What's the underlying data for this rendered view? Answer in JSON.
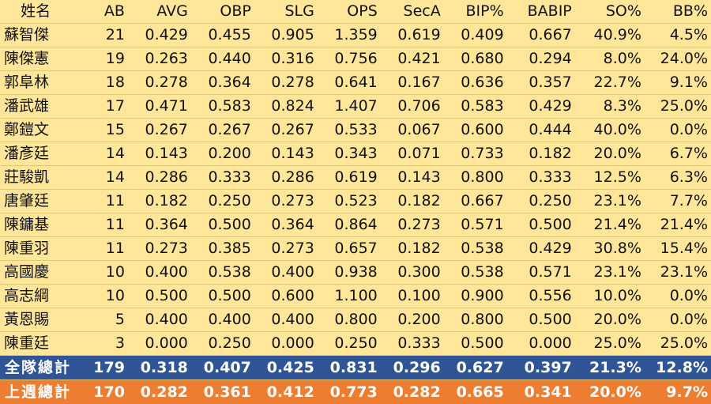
{
  "chart_data": {
    "type": "table",
    "headers": [
      "姓名",
      "AB",
      "AVG",
      "OBP",
      "SLG",
      "OPS",
      "SecA",
      "BIP%",
      "BABIP",
      "SO%",
      "BB%"
    ],
    "rows": [
      [
        "蘇智傑",
        "21",
        "0.429",
        "0.455",
        "0.905",
        "1.359",
        "0.619",
        "0.409",
        "0.667",
        "40.9%",
        "4.5%"
      ],
      [
        "陳傑憲",
        "19",
        "0.263",
        "0.440",
        "0.316",
        "0.756",
        "0.421",
        "0.680",
        "0.294",
        "8.0%",
        "24.0%"
      ],
      [
        "郭阜林",
        "18",
        "0.278",
        "0.364",
        "0.278",
        "0.641",
        "0.167",
        "0.636",
        "0.357",
        "22.7%",
        "9.1%"
      ],
      [
        "潘武雄",
        "17",
        "0.471",
        "0.583",
        "0.824",
        "1.407",
        "0.706",
        "0.583",
        "0.429",
        "8.3%",
        "25.0%"
      ],
      [
        "鄭鎧文",
        "15",
        "0.267",
        "0.267",
        "0.267",
        "0.533",
        "0.067",
        "0.600",
        "0.444",
        "40.0%",
        "0.0%"
      ],
      [
        "潘彥廷",
        "14",
        "0.143",
        "0.200",
        "0.143",
        "0.343",
        "0.071",
        "0.733",
        "0.182",
        "20.0%",
        "6.7%"
      ],
      [
        "莊駿凱",
        "14",
        "0.286",
        "0.333",
        "0.286",
        "0.619",
        "0.143",
        "0.800",
        "0.333",
        "12.5%",
        "6.3%"
      ],
      [
        "唐肇廷",
        "11",
        "0.182",
        "0.250",
        "0.273",
        "0.523",
        "0.182",
        "0.667",
        "0.250",
        "23.1%",
        "7.7%"
      ],
      [
        "陳鏞基",
        "11",
        "0.364",
        "0.500",
        "0.364",
        "0.864",
        "0.273",
        "0.571",
        "0.500",
        "21.4%",
        "21.4%"
      ],
      [
        "陳重羽",
        "11",
        "0.273",
        "0.385",
        "0.273",
        "0.657",
        "0.182",
        "0.538",
        "0.429",
        "30.8%",
        "15.4%"
      ],
      [
        "高國慶",
        "10",
        "0.400",
        "0.538",
        "0.400",
        "0.938",
        "0.300",
        "0.538",
        "0.571",
        "23.1%",
        "23.1%"
      ],
      [
        "高志綱",
        "10",
        "0.500",
        "0.500",
        "0.600",
        "1.100",
        "0.100",
        "0.900",
        "0.556",
        "10.0%",
        "0.0%"
      ],
      [
        "黃恩賜",
        "5",
        "0.400",
        "0.400",
        "0.400",
        "0.800",
        "0.200",
        "0.800",
        "0.500",
        "20.0%",
        "0.0%"
      ],
      [
        "陳重廷",
        "3",
        "0.000",
        "0.250",
        "0.000",
        "0.250",
        "0.333",
        "0.500",
        "0.000",
        "25.0%",
        "25.0%"
      ]
    ],
    "team_total": [
      "全隊總計",
      "179",
      "0.318",
      "0.407",
      "0.425",
      "0.831",
      "0.296",
      "0.627",
      "0.397",
      "21.3%",
      "12.8%"
    ],
    "last_week_total": [
      "上週總計",
      "170",
      "0.282",
      "0.361",
      "0.412",
      "0.773",
      "0.282",
      "0.665",
      "0.341",
      "20.0%",
      "9.7%"
    ]
  },
  "colors": {
    "background": "#ffe699",
    "team_total_row": "#2f5597",
    "last_week_row": "#ed7d31",
    "total_text": "#ffffff"
  }
}
